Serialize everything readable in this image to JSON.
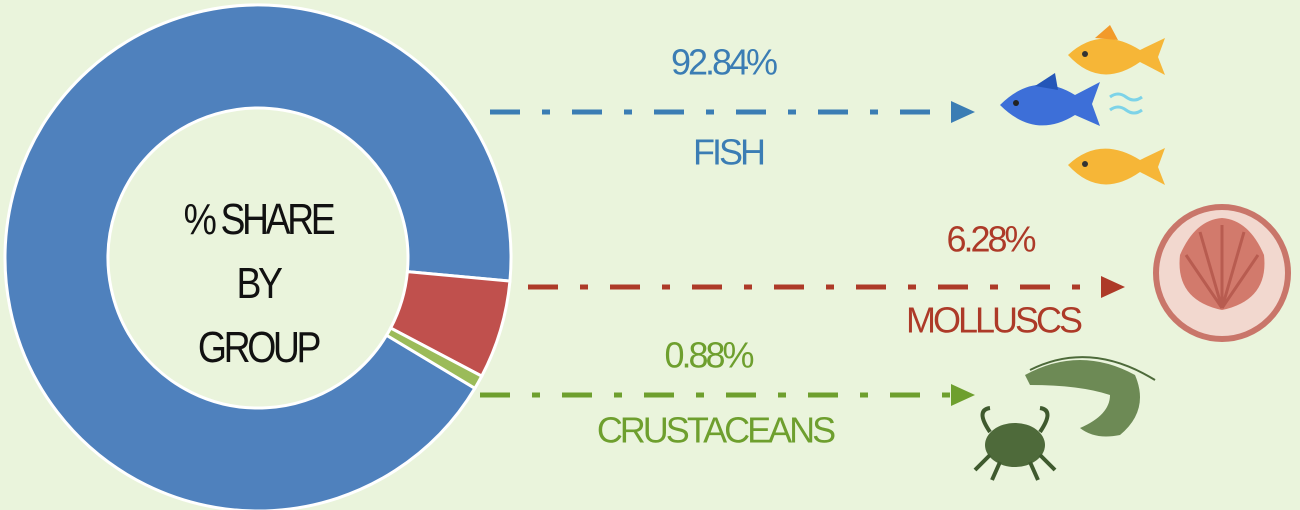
{
  "chart_data": {
    "type": "donut",
    "title": "% SHARE BY GROUP",
    "categories": [
      "FISH",
      "MOLLUSCS",
      "CRUSTACEANS"
    ],
    "values": [
      92.84,
      6.28,
      0.88
    ],
    "value_labels": [
      "92.84%",
      "6.28%",
      "0.88%"
    ],
    "colors": [
      "#4f81bd",
      "#c0504d",
      "#9bbb59"
    ],
    "label_colors": [
      "#3b7db4",
      "#ad3a28",
      "#6e9f2e"
    ]
  }
}
